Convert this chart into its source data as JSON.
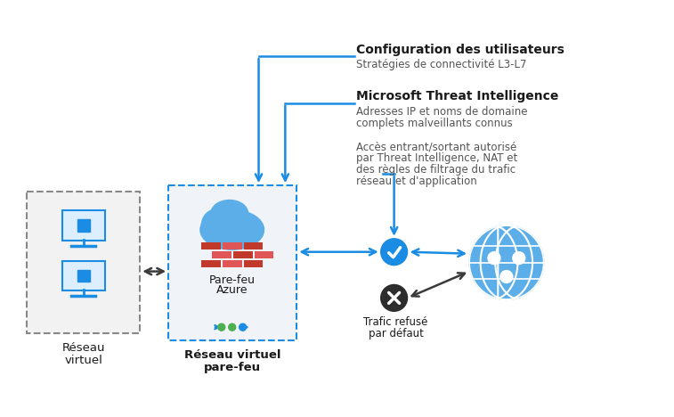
{
  "bg_color": "#ffffff",
  "blue": "#1b8ce3",
  "dark_arrow": "#3a3a3a",
  "gray_box_color": "#888888",
  "box_fill": "#f0f0f0",
  "box1_label1": "Réseau",
  "box1_label2": "virtuel",
  "box2_label1": "Réseau virtuel",
  "box2_label2": "pare-feu",
  "firewall_label1": "Pare-feu",
  "firewall_label2": "Azure",
  "deny_label1": "Trafic refusé",
  "deny_label2": "par défaut",
  "text1_bold": "Configuration des utilisateurs",
  "text1_normal": "Stratégies de connectivité L3-L7",
  "text2_bold": "Microsoft Threat Intelligence",
  "text2_line1": "Adresses IP et noms de domaine",
  "text2_line2": "complets malveillants connus",
  "text3_line1": "Accès entrant/sortant autorisé",
  "text3_line2": "par Threat Intelligence, NAT et",
  "text3_line3": "des règles de filtrage du trafic",
  "text3_line4": "réseau et d'application",
  "check_color": "#1b8ce3",
  "deny_color": "#2d2d2d",
  "cloud_color": "#5baee8",
  "globe_color": "#5baee8",
  "dot_colors": [
    "#4caf50",
    "#4caf50",
    "#1b8ce3"
  ],
  "monitor_color": "#1b8ce3",
  "monitor_fill": "#ddeeff",
  "brick_dark": "#c0392b",
  "brick_light": "#e05555"
}
